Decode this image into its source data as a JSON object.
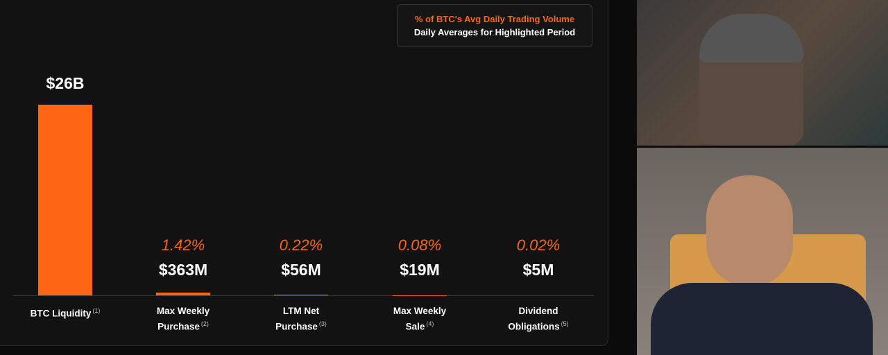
{
  "chart_data": {
    "type": "bar",
    "legend": {
      "title": "% of BTC's Avg Daily Trading Volume",
      "subtitle": "Daily Averages for Highlighted Period"
    },
    "categories": [
      "BTC Liquidity",
      "Max Weekly Purchase",
      "LTM Net Purchase",
      "Max Weekly Sale",
      "Dividend Obligations"
    ],
    "notes": [
      "(1)",
      "(2)",
      "(3)",
      "(4)",
      "(5)"
    ],
    "values": [
      26000000000,
      363000000,
      56000000,
      19000000,
      5000000
    ],
    "value_labels": [
      "$26B",
      "$363M",
      "$56M",
      "$19M",
      "$5M"
    ],
    "pct_values": [
      null,
      1.42,
      0.22,
      0.08,
      0.02
    ],
    "pct_labels": [
      null,
      "1.42%",
      "0.22%",
      "0.08%",
      "0.02%"
    ],
    "color": "#fb6514",
    "ylim": [
      0,
      26000000000
    ]
  }
}
